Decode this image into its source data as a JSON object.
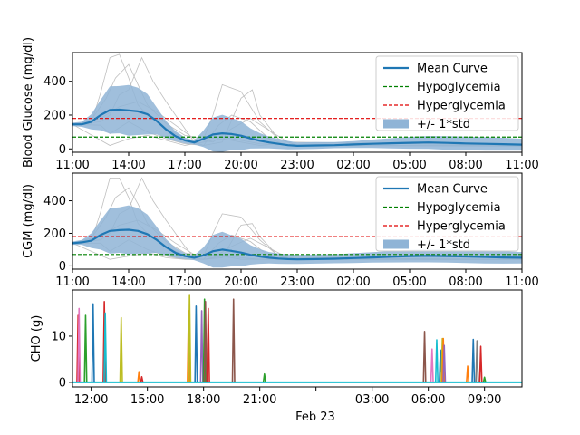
{
  "chart_data": [
    {
      "type": "line",
      "panel": "blood-glucose",
      "ylabel": "Blood Glucose (mg/dl)",
      "xlim": [
        11,
        35
      ],
      "ylim": [
        -20,
        570
      ],
      "yticks": [
        0,
        200,
        400
      ],
      "xticks": [
        {
          "x": 11,
          "label": "11:00"
        },
        {
          "x": 14,
          "label": "14:00"
        },
        {
          "x": 17,
          "label": "17:00"
        },
        {
          "x": 20,
          "label": "20:00"
        },
        {
          "x": 23,
          "label": "23:00"
        },
        {
          "x": 26,
          "label": "02:00"
        },
        {
          "x": 29,
          "label": "05:00"
        },
        {
          "x": 32,
          "label": "08:00"
        },
        {
          "x": 35,
          "label": "11:00"
        }
      ],
      "legend": {
        "placement": "upper-right",
        "entries": [
          "Mean Curve",
          "Hypoglycemia",
          "Hyperglycemia",
          "+/- 1*std"
        ]
      },
      "thresholds": {
        "hypoglycemia": 70,
        "hyperglycemia": 180
      },
      "colors": {
        "mean": "#1f77b4",
        "band": "#8fb4d6",
        "hypo": "#008000",
        "hyper": "#e00000",
        "traces": "#bfbfbf"
      },
      "mean": {
        "x": [
          11,
          11.5,
          12,
          12.5,
          13,
          13.5,
          14,
          14.5,
          15,
          15.5,
          16,
          16.5,
          17,
          17.5,
          18,
          18.5,
          19,
          19.5,
          20,
          20.5,
          21,
          21.5,
          22,
          22.5,
          23,
          24,
          25,
          26,
          27,
          28,
          29,
          30,
          31,
          32,
          33,
          34,
          35
        ],
        "y": [
          145,
          145,
          160,
          200,
          230,
          232,
          228,
          222,
          205,
          165,
          115,
          75,
          50,
          38,
          60,
          85,
          92,
          88,
          78,
          62,
          48,
          38,
          30,
          22,
          18,
          20,
          22,
          26,
          30,
          33,
          36,
          38,
          35,
          32,
          30,
          28,
          25
        ]
      },
      "std": [
        10,
        15,
        45,
        90,
        140,
        140,
        150,
        140,
        120,
        80,
        50,
        30,
        18,
        12,
        50,
        100,
        110,
        95,
        85,
        60,
        45,
        35,
        30,
        25,
        20,
        20,
        18,
        20,
        25,
        30,
        35,
        38,
        40,
        40,
        40,
        38,
        35
      ],
      "traces": [
        {
          "x": [
            11,
            12,
            12.5,
            13,
            13.5,
            14,
            14.5,
            15,
            16,
            17,
            17.5,
            18,
            19,
            20,
            21,
            22,
            23,
            35
          ],
          "y": [
            145,
            150,
            330,
            540,
            560,
            420,
            260,
            200,
            120,
            60,
            40,
            60,
            70,
            50,
            30,
            25,
            20,
            20
          ]
        },
        {
          "x": [
            11,
            12,
            12.8,
            13.3,
            14,
            14.5,
            15,
            16,
            17,
            18,
            18.5,
            19,
            20,
            21,
            22,
            23,
            35
          ],
          "y": [
            145,
            170,
            300,
            420,
            500,
            380,
            260,
            150,
            80,
            60,
            200,
            380,
            340,
            160,
            60,
            20,
            15
          ]
        },
        {
          "x": [
            11,
            12.5,
            13,
            13.5,
            14,
            14.7,
            15.3,
            16,
            17,
            17.5,
            18,
            19,
            20,
            20.6,
            21,
            22,
            23,
            35
          ],
          "y": [
            145,
            160,
            200,
            320,
            350,
            540,
            400,
            280,
            120,
            40,
            20,
            40,
            300,
            350,
            200,
            60,
            20,
            20
          ]
        },
        {
          "x": [
            11,
            12.5,
            13.5,
            14.5,
            15.5,
            16.5,
            17.5,
            18.5,
            19.5,
            20.5,
            21.5,
            22.5,
            35
          ],
          "y": [
            145,
            180,
            250,
            280,
            220,
            140,
            60,
            40,
            120,
            180,
            110,
            40,
            20
          ]
        },
        {
          "x": [
            11,
            12.5,
            13,
            14,
            15,
            16,
            17,
            18,
            18.8,
            19.5,
            20.5,
            21.5,
            22.5,
            35
          ],
          "y": [
            145,
            140,
            90,
            160,
            100,
            60,
            30,
            20,
            140,
            200,
            160,
            60,
            20,
            20
          ]
        },
        {
          "x": [
            11,
            13,
            14,
            15,
            16,
            17,
            18,
            19,
            20,
            21,
            22,
            23,
            35
          ],
          "y": [
            145,
            20,
            60,
            80,
            50,
            20,
            40,
            60,
            40,
            20,
            30,
            20,
            20
          ]
        }
      ]
    },
    {
      "type": "line",
      "panel": "cgm",
      "ylabel": "CGM (mg/dl)",
      "xlim": [
        11,
        35
      ],
      "ylim": [
        -20,
        570
      ],
      "yticks": [
        0,
        200,
        400
      ],
      "xticks": [
        {
          "x": 11,
          "label": "11:00"
        },
        {
          "x": 14,
          "label": "14:00"
        },
        {
          "x": 17,
          "label": "17:00"
        },
        {
          "x": 20,
          "label": "20:00"
        },
        {
          "x": 23,
          "label": "23:00"
        },
        {
          "x": 26,
          "label": "02:00"
        },
        {
          "x": 29,
          "label": "05:00"
        },
        {
          "x": 32,
          "label": "08:00"
        },
        {
          "x": 35,
          "label": "11:00"
        }
      ],
      "legend": {
        "placement": "upper-right",
        "entries": [
          "Mean Curve",
          "Hypoglycemia",
          "Hyperglycemia",
          "+/- 1*std"
        ]
      },
      "thresholds": {
        "hypoglycemia": 70,
        "hyperglycemia": 180
      },
      "colors": {
        "mean": "#1f77b4",
        "band": "#8fb4d6",
        "hypo": "#008000",
        "hyper": "#e00000",
        "traces": "#bfbfbf"
      },
      "mean": {
        "x": [
          11,
          11.5,
          12,
          12.5,
          13,
          13.5,
          14,
          14.5,
          15,
          15.5,
          16,
          16.5,
          17,
          17.5,
          18,
          18.5,
          19,
          19.5,
          20,
          20.5,
          21,
          21.5,
          22,
          22.5,
          23,
          24,
          25,
          26,
          27,
          28,
          29,
          30,
          31,
          32,
          33,
          34,
          35
        ],
        "y": [
          140,
          145,
          155,
          190,
          215,
          220,
          222,
          215,
          195,
          160,
          115,
          80,
          60,
          50,
          65,
          90,
          100,
          92,
          82,
          68,
          58,
          50,
          45,
          42,
          40,
          42,
          44,
          48,
          52,
          56,
          60,
          62,
          60,
          58,
          55,
          52,
          50
        ]
      },
      "std": [
        10,
        15,
        45,
        90,
        140,
        140,
        150,
        140,
        120,
        80,
        50,
        30,
        18,
        15,
        50,
        100,
        110,
        95,
        85,
        60,
        45,
        35,
        32,
        30,
        28,
        28,
        28,
        30,
        32,
        35,
        38,
        40,
        40,
        40,
        40,
        38,
        35
      ],
      "traces": [
        {
          "x": [
            11,
            12,
            12.5,
            13,
            13.5,
            14,
            14.5,
            15,
            16,
            17,
            17.5,
            18,
            19,
            20,
            21,
            22,
            23,
            35
          ],
          "y": [
            140,
            150,
            330,
            540,
            540,
            420,
            260,
            200,
            120,
            60,
            40,
            60,
            70,
            50,
            40,
            40,
            40,
            40
          ]
        },
        {
          "x": [
            11,
            12,
            12.8,
            13.3,
            14,
            14.5,
            15,
            16,
            17,
            18,
            18.5,
            19,
            20,
            21,
            22,
            23,
            35
          ],
          "y": [
            140,
            170,
            300,
            420,
            480,
            380,
            260,
            150,
            80,
            60,
            200,
            320,
            300,
            160,
            60,
            40,
            40
          ]
        },
        {
          "x": [
            11,
            12.5,
            13,
            13.5,
            14,
            14.7,
            15.3,
            16,
            17,
            17.5,
            18,
            19,
            20,
            20.6,
            21,
            22,
            23,
            35
          ],
          "y": [
            140,
            160,
            200,
            320,
            350,
            540,
            400,
            280,
            120,
            50,
            40,
            50,
            250,
            260,
            180,
            60,
            40,
            40
          ]
        },
        {
          "x": [
            11,
            12.5,
            13.5,
            14.5,
            15.5,
            16.5,
            17.5,
            18.5,
            19.5,
            20.5,
            21.5,
            22.5,
            35
          ],
          "y": [
            140,
            180,
            250,
            280,
            220,
            140,
            70,
            50,
            120,
            170,
            110,
            50,
            40
          ]
        },
        {
          "x": [
            11,
            12.5,
            13,
            14,
            15,
            16,
            17,
            18,
            18.8,
            19.5,
            20.5,
            21.5,
            22.5,
            35
          ],
          "y": [
            140,
            140,
            90,
            160,
            100,
            60,
            40,
            40,
            140,
            190,
            150,
            60,
            40,
            40
          ]
        },
        {
          "x": [
            11,
            13,
            14,
            15,
            16,
            17,
            18,
            19,
            20,
            21,
            22,
            23,
            35
          ],
          "y": [
            140,
            40,
            60,
            80,
            50,
            40,
            40,
            60,
            40,
            40,
            40,
            40,
            40
          ]
        }
      ]
    },
    {
      "type": "line",
      "panel": "cho",
      "ylabel": "CHO (g)",
      "xlabel": "Feb 23",
      "xlim": [
        11,
        35
      ],
      "ylim": [
        -1,
        20
      ],
      "yticks": [
        0,
        10
      ],
      "xticks": [
        {
          "x": 12,
          "label": "12:00"
        },
        {
          "x": 15,
          "label": "15:00"
        },
        {
          "x": 18,
          "label": "18:00"
        },
        {
          "x": 21,
          "label": "21:00"
        },
        {
          "x": 24,
          "label": ""
        },
        {
          "x": 27,
          "label": "03:00"
        },
        {
          "x": 30,
          "label": "06:00"
        },
        {
          "x": 33,
          "label": "09:00"
        }
      ],
      "baseline_color": "#17becf",
      "meals": [
        {
          "t": 11.3,
          "v": 14.5,
          "color": "#d62728"
        },
        {
          "t": 11.35,
          "v": 16,
          "color": "#e377c2"
        },
        {
          "t": 11.7,
          "v": 14.5,
          "color": "#2ca02c"
        },
        {
          "t": 12.1,
          "v": 17,
          "color": "#1f77b4"
        },
        {
          "t": 12.7,
          "v": 17.5,
          "color": "#d62728"
        },
        {
          "t": 12.75,
          "v": 15,
          "color": "#17becf"
        },
        {
          "t": 13.6,
          "v": 14,
          "color": "#bcbd22"
        },
        {
          "t": 14.55,
          "v": 2.3,
          "color": "#ff7f0e"
        },
        {
          "t": 14.7,
          "v": 1.2,
          "color": "#d62728"
        },
        {
          "t": 17.2,
          "v": 15.5,
          "color": "#ff7f0e"
        },
        {
          "t": 17.25,
          "v": 19,
          "color": "#bcbd22"
        },
        {
          "t": 17.6,
          "v": 16.5,
          "color": "#1f77b4"
        },
        {
          "t": 17.9,
          "v": 15.5,
          "color": "#9467bd"
        },
        {
          "t": 18.05,
          "v": 18,
          "color": "#2ca02c"
        },
        {
          "t": 18.1,
          "v": 17.5,
          "color": "#8c564b"
        },
        {
          "t": 18.25,
          "v": 16,
          "color": "#d62728"
        },
        {
          "t": 19.6,
          "v": 18,
          "color": "#8c564b"
        },
        {
          "t": 21.25,
          "v": 1.8,
          "color": "#2ca02c"
        },
        {
          "t": 29.8,
          "v": 11,
          "color": "#8c564b"
        },
        {
          "t": 30.2,
          "v": 7.2,
          "color": "#e377c2"
        },
        {
          "t": 30.45,
          "v": 9.2,
          "color": "#17becf"
        },
        {
          "t": 30.65,
          "v": 7,
          "color": "#1f77b4"
        },
        {
          "t": 30.75,
          "v": 9.5,
          "color": "#bcbd22"
        },
        {
          "t": 30.8,
          "v": 9.5,
          "color": "#ff7f0e"
        },
        {
          "t": 30.85,
          "v": 8,
          "color": "#9467bd"
        },
        {
          "t": 32.1,
          "v": 3.5,
          "color": "#ff7f0e"
        },
        {
          "t": 32.4,
          "v": 9.3,
          "color": "#1f77b4"
        },
        {
          "t": 32.6,
          "v": 9.0,
          "color": "#7f7f7f"
        },
        {
          "t": 32.8,
          "v": 7.8,
          "color": "#d62728"
        },
        {
          "t": 33.0,
          "v": 1.1,
          "color": "#2ca02c"
        }
      ]
    }
  ]
}
